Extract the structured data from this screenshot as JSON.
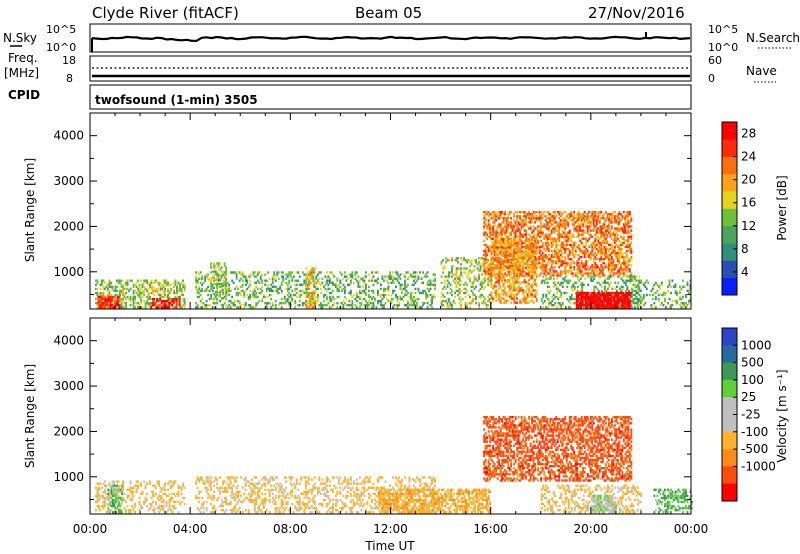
{
  "header": {
    "station": "Clyde River (fitACF)",
    "beam": "Beam 05",
    "date": "27/Nov/2016"
  },
  "cpid_label": "CPID",
  "cpid_text": "twofsound (1-min) 3505",
  "strips": {
    "nsky": {
      "label": "N.Sky",
      "ticks": [
        "10^5",
        "10^0"
      ],
      "right_label": "N.Search",
      "right_ticks": [
        "10^5",
        "10^0"
      ]
    },
    "freq": {
      "label_line1": "Freq.",
      "label_line2": "[MHz]",
      "ticks": [
        "18",
        "8"
      ],
      "right_label": "Nave",
      "right_ticks": [
        "60",
        "0"
      ]
    }
  },
  "colors": {
    "power": [
      "#0a1eff",
      "#2a4fb4",
      "#2f8f7a",
      "#4fa35a",
      "#6ec23a",
      "#e8d21b",
      "#ffa21a",
      "#ff6f12",
      "#ff2b0a",
      "#ff0000"
    ],
    "velocity": [
      "#ff0000",
      "#ff4a10",
      "#ff8a1a",
      "#ffb22a",
      "#c0c0c0",
      "#c0c0c0",
      "#5fcf3a",
      "#3d9a55",
      "#2a6aa0",
      "#2a45c8"
    ]
  },
  "chart_data": [
    {
      "type": "heatmap",
      "name": "power",
      "xlabel": "",
      "ylabel": "Slant Range [km]",
      "xlim_hours": [
        0,
        24
      ],
      "ylim_km": [
        180,
        4500
      ],
      "yticks": [
        1000,
        2000,
        3000,
        4000
      ],
      "colorbar": {
        "label": "Power [dB]",
        "ticks": [
          4,
          8,
          12,
          16,
          20,
          24,
          28
        ],
        "range": [
          0,
          30
        ]
      },
      "echo_regions": [
        {
          "t0": 0.2,
          "t1": 3.8,
          "r0": 200,
          "r1": 800,
          "level": 14,
          "density": 0.45
        },
        {
          "t0": 0.3,
          "t1": 1.2,
          "r0": 200,
          "r1": 450,
          "level": 26,
          "density": 0.7
        },
        {
          "t0": 2.4,
          "t1": 3.6,
          "r0": 200,
          "r1": 420,
          "level": 28,
          "density": 0.6
        },
        {
          "t0": 4.2,
          "t1": 13.8,
          "r0": 200,
          "r1": 1000,
          "level": 12,
          "density": 0.3
        },
        {
          "t0": 4.8,
          "t1": 5.4,
          "r0": 400,
          "r1": 1200,
          "level": 14,
          "density": 0.45
        },
        {
          "t0": 8.6,
          "t1": 9.0,
          "r0": 200,
          "r1": 1100,
          "level": 18,
          "density": 0.5
        },
        {
          "t0": 14.0,
          "t1": 16.0,
          "r0": 200,
          "r1": 1300,
          "level": 14,
          "density": 0.35
        },
        {
          "t0": 15.7,
          "t1": 21.6,
          "r0": 900,
          "r1": 2300,
          "level": 22,
          "density": 0.55
        },
        {
          "t0": 16.0,
          "t1": 17.8,
          "r0": 300,
          "r1": 1700,
          "level": 20,
          "density": 0.5
        },
        {
          "t0": 18.0,
          "t1": 22.0,
          "r0": 200,
          "r1": 900,
          "level": 12,
          "density": 0.3
        },
        {
          "t0": 19.4,
          "t1": 21.6,
          "r0": 200,
          "r1": 520,
          "level": 30,
          "density": 0.9
        },
        {
          "t0": 21.6,
          "t1": 24.0,
          "r0": 200,
          "r1": 800,
          "level": 12,
          "density": 0.3
        }
      ]
    },
    {
      "type": "heatmap",
      "name": "velocity",
      "xlabel": "Time UT",
      "ylabel": "Slant Range [km]",
      "xlim_hours": [
        0,
        24
      ],
      "xticks": [
        "00:00",
        "04:00",
        "08:00",
        "12:00",
        "16:00",
        "20:00",
        "00:00"
      ],
      "ylim_km": [
        180,
        4500
      ],
      "yticks": [
        1000,
        2000,
        3000,
        4000
      ],
      "colorbar": {
        "label": "Velocity [m s⁻¹]",
        "ticks": [
          1000,
          500,
          100,
          25,
          -25,
          -100,
          -500,
          -1000
        ]
      },
      "echo_regions": [
        {
          "t0": 0.2,
          "t1": 3.8,
          "r0": 200,
          "r1": 900,
          "level": -150,
          "density": 0.3
        },
        {
          "t0": 0.7,
          "t1": 1.3,
          "r0": 200,
          "r1": 800,
          "level": 80,
          "density": 0.6
        },
        {
          "t0": 4.2,
          "t1": 13.8,
          "r0": 200,
          "r1": 1000,
          "level": -150,
          "density": 0.3
        },
        {
          "t0": 11.5,
          "t1": 16.0,
          "r0": 200,
          "r1": 700,
          "level": -200,
          "density": 0.55
        },
        {
          "t0": 15.7,
          "t1": 21.6,
          "r0": 900,
          "r1": 2300,
          "level": -700,
          "density": 0.55
        },
        {
          "t0": 18.0,
          "t1": 22.0,
          "r0": 200,
          "r1": 800,
          "level": -150,
          "density": 0.35
        },
        {
          "t0": 20.0,
          "t1": 21.0,
          "r0": 200,
          "r1": 600,
          "level": 0,
          "density": 0.7
        },
        {
          "t0": 22.5,
          "t1": 24.0,
          "r0": 200,
          "r1": 700,
          "level": 80,
          "density": 0.45
        }
      ]
    }
  ]
}
